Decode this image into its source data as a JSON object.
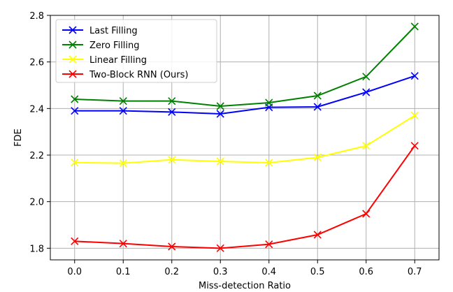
{
  "chart_data": {
    "type": "line",
    "xlabel": "Miss-detection Ratio",
    "ylabel": "FDE",
    "x": [
      0.0,
      0.1,
      0.2,
      0.3,
      0.4,
      0.5,
      0.6,
      0.7
    ],
    "x_tick_labels": [
      "0.0",
      "0.1",
      "0.2",
      "0.3",
      "0.4",
      "0.5",
      "0.6",
      "0.7"
    ],
    "y_ticks": [
      1.8,
      2.0,
      2.2,
      2.4,
      2.6,
      2.8
    ],
    "y_tick_labels": [
      "1.8",
      "2.0",
      "2.2",
      "2.4",
      "2.6",
      "2.8"
    ],
    "xlim": [
      -0.05,
      0.75
    ],
    "ylim": [
      1.75,
      2.8
    ],
    "grid": true,
    "legend_position": "top-left",
    "marker": "x",
    "series": [
      {
        "name": "Last Filling",
        "color": "#0000ff",
        "values": [
          2.39,
          2.39,
          2.385,
          2.377,
          2.405,
          2.407,
          2.47,
          2.54
        ]
      },
      {
        "name": "Zero Filling",
        "color": "#008000",
        "values": [
          2.44,
          2.432,
          2.432,
          2.41,
          2.425,
          2.455,
          2.537,
          2.752
        ]
      },
      {
        "name": "Linear Filling",
        "color": "#ffff00",
        "values": [
          2.168,
          2.165,
          2.18,
          2.173,
          2.167,
          2.19,
          2.24,
          2.37
        ]
      },
      {
        "name": "Two-Block RNN (Ours)",
        "color": "#ff0000",
        "values": [
          1.83,
          1.82,
          1.807,
          1.8,
          1.817,
          1.858,
          1.948,
          2.24
        ]
      }
    ]
  }
}
